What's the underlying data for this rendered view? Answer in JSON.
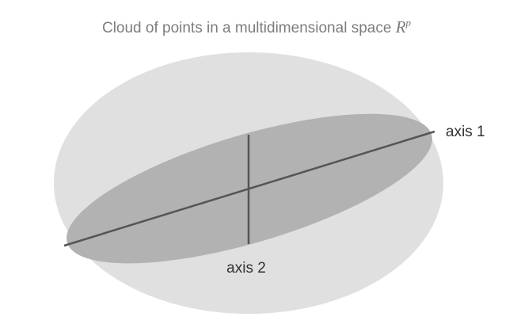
{
  "title": {
    "text": "Cloud of points in a multidimensional space ",
    "math_symbol": "R",
    "math_superscript": "p"
  },
  "labels": {
    "axis1": "axis 1",
    "axis2": "axis 2"
  },
  "colors": {
    "outer_ellipse": "#e0e0e0",
    "inner_ellipse": "#b2b2b2",
    "axis_line": "#555555",
    "title_text": "#7d7d7d",
    "label_text": "#333333"
  }
}
